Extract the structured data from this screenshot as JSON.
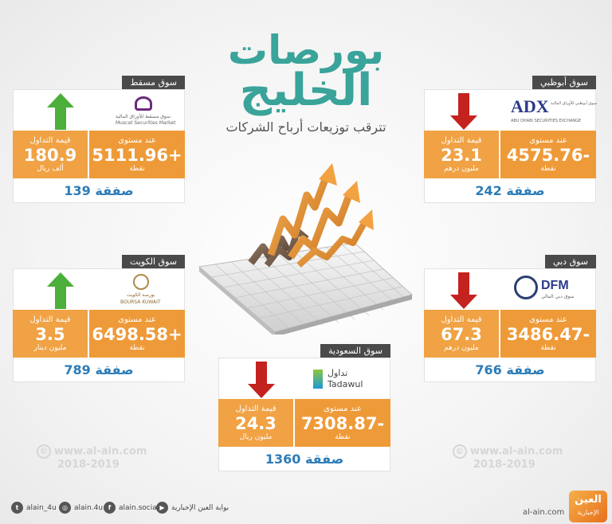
{
  "title": {
    "line1": "بورصات",
    "line2": "الخليج",
    "subtitle": "تترقب توزيعات أرباح  الشركات"
  },
  "labels": {
    "level": "عند مستوى",
    "points": "نقطة",
    "trade_value": "قيمة التداول"
  },
  "markets": {
    "muscat": {
      "name": "سوق مسقط",
      "direction": "up",
      "logo_ar": "سوق مسقط للأوراق المالية",
      "logo_en": "Muscat Securities Market",
      "level": "5111.96+",
      "trade_value": "180.9",
      "trade_unit": "ألف ريال",
      "deals": "139 صفقة"
    },
    "abudhabi": {
      "name": "سوق أبوظبي",
      "direction": "down",
      "logo_main": "ADX",
      "logo_en": "ABU DHABI SECURITIES EXCHANGE",
      "logo_ar": "سوق أبوظبي للأوراق المالية",
      "level": "4575.76-",
      "trade_value": "23.1",
      "trade_unit": "مليون درهم",
      "deals": "242 صفقة"
    },
    "kuwait": {
      "name": "سوق الكويت",
      "direction": "up",
      "logo_ar": "بورصة الكويت",
      "logo_en": "BOURSA KUWAIT",
      "level": "6498.58+",
      "trade_value": "3.5",
      "trade_unit": "مليون دينار",
      "deals": "789 صفقة"
    },
    "dubai": {
      "name": "سوق دبي",
      "direction": "down",
      "logo_main": "DFM",
      "logo_ar": "سوق دبي المالي",
      "level": "3486.47-",
      "trade_value": "67.3",
      "trade_unit": "مليون درهم",
      "deals": "766 صفقة"
    },
    "saudi": {
      "name": "سوق السعودية",
      "direction": "down",
      "logo_ar": "تداول",
      "logo_en": "Tadawul",
      "level": "7308.87-",
      "trade_value": "24.3",
      "trade_unit": "مليون ريال",
      "deals": "1360 صفقة"
    }
  },
  "watermark": {
    "url": "www.al-ain.com",
    "years": "2018-2019",
    "symbol": "©"
  },
  "footer": {
    "twitter": "alain_4u",
    "instagram": "alain.4u",
    "facebook": "alain.social",
    "youtube": "بوابة العين الإخبارية",
    "site": "al-ain.com",
    "brand_main": "العين",
    "brand_sub": "الإخبارية"
  },
  "colors": {
    "accent_teal": "#3aa39a",
    "orange": "#ef9a38",
    "up": "#4caf3a",
    "down": "#c4221f",
    "deals_blue": "#2c7cb8"
  }
}
